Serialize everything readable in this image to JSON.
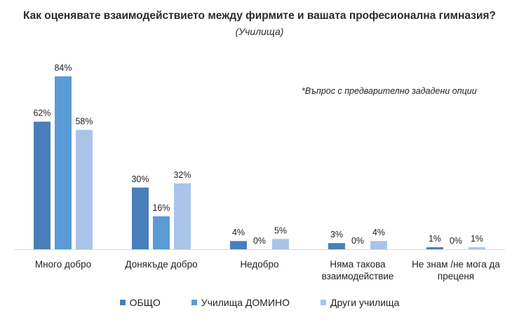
{
  "chart_data": {
    "type": "bar",
    "title": "Как оценявате взаимодействието между фирмите и вашата професионална гимназия?",
    "subtitle": "(Училища)",
    "note": "*Въпрос с предварително зададени опции",
    "categories": [
      [
        "Много добро"
      ],
      [
        "Донякъде добро"
      ],
      [
        "Недобро"
      ],
      [
        "Няма такова",
        "взаимодействие"
      ],
      [
        "Не знам /не мога да",
        "преценя"
      ]
    ],
    "series": [
      {
        "name": "ОБЩО",
        "color": "#4a7ebb",
        "values": [
          62,
          30,
          4,
          3,
          1
        ]
      },
      {
        "name": "Училища ДОМИНО",
        "color": "#5b9bd5",
        "values": [
          84,
          16,
          0,
          0,
          0
        ]
      },
      {
        "name": "Други училища",
        "color": "#a9c4e8",
        "values": [
          58,
          32,
          5,
          4,
          1
        ]
      }
    ],
    "value_suffix": "%",
    "ylim": [
      0,
      100
    ],
    "grid": false,
    "legend_position": "bottom"
  }
}
